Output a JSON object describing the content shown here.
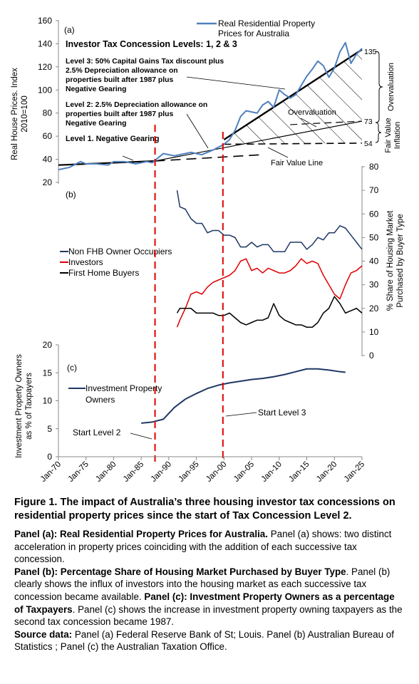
{
  "panel_a": {
    "tag": "(a)",
    "ylabel": "Real House Prices. Index 2010=100",
    "yticks": [
      20,
      40,
      60,
      80,
      100,
      120,
      140,
      160
    ],
    "legend": "Real Residential Property Prices for Australia",
    "levels_title": "Investor Tax Concession Levels: 1, 2 & 3",
    "level3": "Level 3: 50% Capital Gains Tax discount plus 2.5% Depreciation allowance on properties built after 1987 plus Negative Gearing",
    "level2": "Level 2: 2.5% Depreciation allowance on properties built after 1987 plus Negative Gearing",
    "level1": "Level 1. Negative Gearing",
    "overvaluation": "Overvaluation",
    "fair_value_line": "Fair Value Line",
    "right_vals": [
      "135",
      "73",
      "54"
    ],
    "right_label_1": "Overvaluation",
    "right_label_2": "Fair Value Inflation"
  },
  "panel_b": {
    "tag": "(b)",
    "ylabel": "% Share of Housing Market Purchased by Buyer Type",
    "yticks": [
      "0",
      "10",
      "20",
      "30",
      "40",
      "50",
      "60",
      "70",
      "80"
    ],
    "legend": [
      "Non FHB Owner Occupiers",
      "Investors",
      "First Home Buyers"
    ]
  },
  "panel_c": {
    "tag": "(c)",
    "ylabel": "Investment Property Owners as % of Taxpayers",
    "yticks": [
      0,
      5,
      10,
      15,
      20
    ],
    "legend": "Investment Property Owners",
    "start_level2": "Start Level 2",
    "start_level3": "Start Level 3"
  },
  "xticks": [
    "Jan-70",
    "Jan-75",
    "Jan-80",
    "Jan-85",
    "Jan-90",
    "Jan-95",
    "Jan-00",
    "Jan-05",
    "Jan-10",
    "Jan-15",
    "Jan-20",
    "Jan-25"
  ],
  "caption": {
    "title": "Figure 1. The impact of Australia’s three housing investor tax concessions on residential property prices since the start of Tax Concession Level 2.",
    "a_head": "Panel (a): Real Residential Property Prices for Australia.",
    "a_text": " Panel (a) shows: two distinct acceleration in property prices coinciding with the addition of each successive tax concession.",
    "b_head": "Panel (b): Percentage Share of Housing Market Purchased by Buyer Type",
    "b_text": ". Panel (b) clearly shows the influx of investors into the housing market as each successive tax concession became available.",
    "c_head": "Panel (c): Investment Property Owners as a percentage of Taxpayers",
    "c_text": ". Panel (c) shows the increase in investment property owning taxpayers as the second tax concession became 1987.",
    "src_head": "Source data:",
    "src_text": " Panel (a) Federal Reserve Bank of St; Louis. Panel (b) Australian Bureau of Statistics ; Panel (c) the Australian Taxation Office."
  },
  "colors": {
    "prices": "#4f81bd",
    "owner_occupiers": "#1f3864",
    "investors": "#e00000",
    "first_home_buyers": "#000000",
    "investment_owners": "#1f3864",
    "start_lines": "#e00000"
  },
  "chart_data": [
    {
      "type": "line",
      "panel": "a",
      "xlabel": "",
      "ylabel": "Real House Prices. Index 2010=100",
      "ylim": [
        20,
        160
      ],
      "xlim": [
        1970,
        2025
      ],
      "series": [
        {
          "name": "Real Residential Property Prices for Australia",
          "x": [
            1970,
            1972,
            1974,
            1975,
            1977,
            1979,
            1980,
            1982,
            1984,
            1986,
            1987,
            1988,
            1989,
            1990,
            1991,
            1992,
            1994,
            1996,
            1998,
            2000,
            2001,
            2002,
            2003,
            2004,
            2006,
            2007,
            2008,
            2009,
            2010,
            2011,
            2012,
            2013,
            2014,
            2015,
            2016,
            2017,
            2018,
            2019,
            2020,
            2021,
            2022,
            2023,
            2024,
            2025
          ],
          "values": [
            31,
            33,
            38,
            36,
            36,
            35,
            38,
            38,
            36,
            38,
            37,
            41,
            45,
            44,
            43,
            44,
            46,
            44,
            48,
            53,
            57,
            65,
            77,
            82,
            80,
            87,
            90,
            85,
            100,
            96,
            93,
            96,
            104,
            112,
            118,
            125,
            121,
            111,
            119,
            133,
            141,
            123,
            131,
            136
          ]
        }
      ],
      "trend_lines": [
        {
          "from": [
            1970,
            35
          ],
          "to": [
            2025,
            54
          ]
        },
        {
          "from": [
            1987,
            38
          ],
          "to": [
            2025,
            73
          ]
        },
        {
          "from": [
            2000,
            57
          ],
          "to": [
            2025,
            135
          ]
        }
      ],
      "right_labels": [
        135,
        73,
        54
      ]
    },
    {
      "type": "line",
      "panel": "b",
      "xlabel": "",
      "ylabel": "% Share of Housing Market Purchased by Buyer Type",
      "ylim": [
        0,
        80
      ],
      "xlim": [
        1970,
        2025
      ],
      "series": [
        {
          "name": "Non FHB Owner Occupiers",
          "x": [
            1991.5,
            1992,
            1993,
            1994,
            1995,
            1996,
            1997,
            1998,
            1999,
            2000,
            2001,
            2002,
            2003,
            2004,
            2005,
            2006,
            2007,
            2008,
            2009,
            2010,
            2011,
            2012,
            2013,
            2014,
            2015,
            2016,
            2017,
            2018,
            2019,
            2020,
            2021,
            2022,
            2023,
            2024,
            2025
          ],
          "values": [
            70,
            63,
            62,
            58,
            56,
            56,
            52,
            53,
            53,
            51,
            51,
            50,
            46,
            46,
            48,
            46,
            47,
            47,
            44,
            44,
            44,
            48,
            48,
            48,
            45,
            47,
            50,
            49,
            52,
            52,
            55,
            54,
            51,
            48,
            45
          ]
        },
        {
          "name": "Investors",
          "x": [
            1991.5,
            1992,
            1993,
            1994,
            1995,
            1996,
            1997,
            1998,
            1999,
            2000,
            2001,
            2002,
            2003,
            2004,
            2005,
            2006,
            2007,
            2008,
            2009,
            2010,
            2011,
            2012,
            2013,
            2014,
            2015,
            2016,
            2017,
            2018,
            2019,
            2020,
            2021,
            2022,
            2023,
            2024,
            2025
          ],
          "values": [
            12,
            15,
            20,
            26,
            27,
            26,
            29,
            31,
            32,
            33,
            34,
            36,
            40,
            41,
            36,
            37,
            35,
            37,
            36,
            35,
            35,
            36,
            38,
            41,
            39,
            40,
            39,
            34,
            30,
            26,
            24,
            30,
            35,
            36,
            38
          ]
        },
        {
          "name": "First Home Buyers",
          "x": [
            1991.5,
            1992,
            1993,
            1994,
            1995,
            1996,
            1997,
            1998,
            1999,
            2000,
            2001,
            2002,
            2003,
            2004,
            2005,
            2006,
            2007,
            2008,
            2009,
            2010,
            2011,
            2012,
            2013,
            2014,
            2015,
            2016,
            2017,
            2018,
            2019,
            2020,
            2021,
            2022,
            2023,
            2024,
            2025
          ],
          "values": [
            18,
            20,
            20,
            20,
            18,
            18,
            18,
            18,
            17,
            17,
            18,
            16,
            14,
            13,
            14,
            15,
            15,
            16,
            22,
            17,
            15,
            14,
            13,
            13,
            12,
            12,
            14,
            18,
            20,
            25,
            22,
            18,
            19,
            20,
            18
          ]
        }
      ]
    },
    {
      "type": "line",
      "panel": "c",
      "xlabel": "",
      "ylabel": "Investment Property Owners as % of Taxpayers",
      "ylim": [
        0,
        20
      ],
      "xlim": [
        1970,
        2025
      ],
      "series": [
        {
          "name": "Investment Property Owners",
          "x": [
            1985,
            1987,
            1989,
            1991,
            1993,
            1995,
            1997,
            1999,
            2001,
            2003,
            2005,
            2007,
            2009,
            2011,
            2013,
            2015,
            2017,
            2019,
            2021,
            2022
          ],
          "values": [
            6,
            6.2,
            6.7,
            8.8,
            10.3,
            11.3,
            12.2,
            12.8,
            13.2,
            13.5,
            13.8,
            14.0,
            14.3,
            14.7,
            15.2,
            15.7,
            15.7,
            15.5,
            15.2,
            15.1
          ]
        }
      ],
      "markers": [
        {
          "label": "Start Level 2",
          "x": 1987.5
        },
        {
          "label": "Start Level 3",
          "x": 1999.8
        }
      ]
    }
  ]
}
